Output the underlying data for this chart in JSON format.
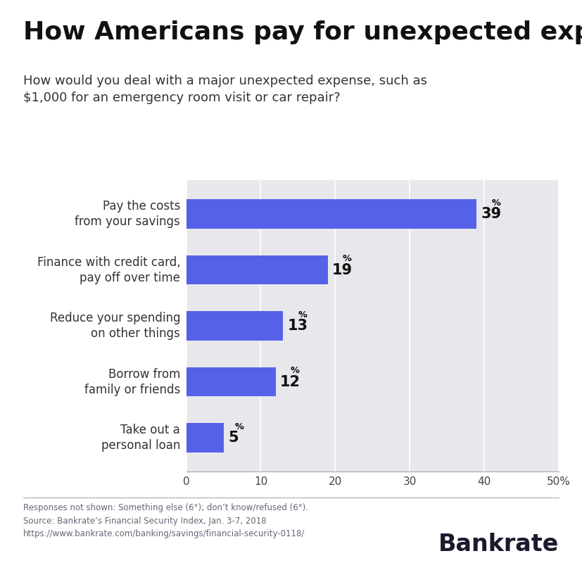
{
  "title": "How Americans pay for unexpected expenses",
  "subtitle": "How would you deal with a major unexpected expense, such as\n$1,000 for an emergency room visit or car repair?",
  "categories": [
    "Take out a\npersonal loan",
    "Borrow from\nfamily or friends",
    "Reduce your spending\non other things",
    "Finance with credit card,\npay off over time",
    "Pay the costs\nfrom your savings"
  ],
  "values": [
    5,
    12,
    13,
    19,
    39
  ],
  "bar_color": "#5562e8",
  "bg_color": "#e8e8ec",
  "footnote_line1": "Responses not shown: Something else (6°); don’t know/refused (6°).",
  "footnote_line2": "Source: Bankrate’s Financial Security Index, Jan. 3-7, 2018",
  "footnote_line3": "https://www.bankrate.com/banking/savings/financial-security-0118/",
  "brandname": "Bankrate",
  "title_fontsize": 26,
  "subtitle_fontsize": 13,
  "label_fontsize": 12,
  "value_fontsize": 15,
  "footnote_fontsize": 8.5,
  "brand_fontsize": 24,
  "title_color": "#111111",
  "subtitle_color": "#333333",
  "label_color": "#333333",
  "value_color": "#111111",
  "footnote_color": "#666677",
  "brand_color": "#1a1a2e",
  "separator_color": "#aaaaaa"
}
